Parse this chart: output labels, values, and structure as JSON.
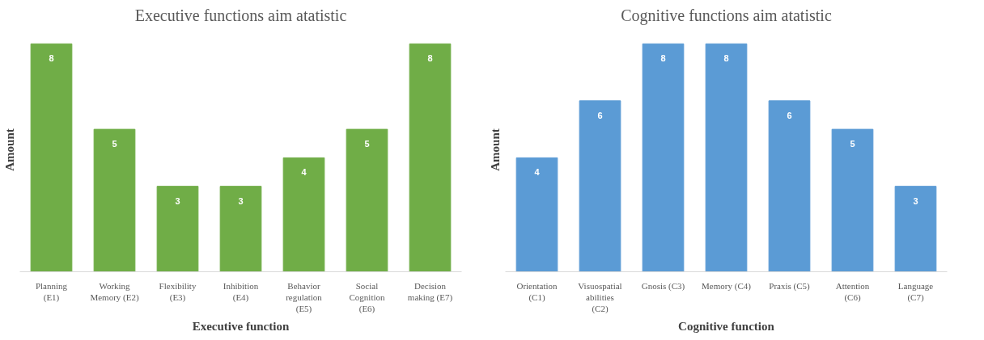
{
  "chart_data": [
    {
      "type": "bar",
      "title": "Executive functions aim atatistic",
      "xlabel": "Executive function",
      "ylabel": "Amount",
      "categories": [
        "Planning (E1)",
        "Working Memory (E2)",
        "Flexibility (E3)",
        "Inhibition (E4)",
        "Behavior regulation (E5)",
        "Social Cognition (E6)",
        "Decision making (E7)"
      ],
      "series": [
        {
          "color": "#70ad47",
          "values": [
            8,
            5,
            3,
            3,
            4,
            5,
            8
          ]
        }
      ],
      "data_labels": true,
      "grid": false,
      "tick_labels": "x"
    },
    {
      "type": "bar",
      "title": "Cognitive functions aim atatistic",
      "xlabel": "Cognitive function",
      "ylabel": "Amount",
      "categories": [
        "Orientation (C1)",
        "Visuospatial abilities (C2)",
        "Gnosis (C3)",
        "Memory (C4)",
        "Praxis (C5)",
        "Attention (C6)",
        "Language (C7)"
      ],
      "series": [
        {
          "color": "#5b9bd5",
          "values": [
            4,
            6,
            8,
            8,
            6,
            5,
            3
          ]
        }
      ],
      "data_labels": true,
      "grid": false,
      "tick_labels": "x"
    }
  ]
}
